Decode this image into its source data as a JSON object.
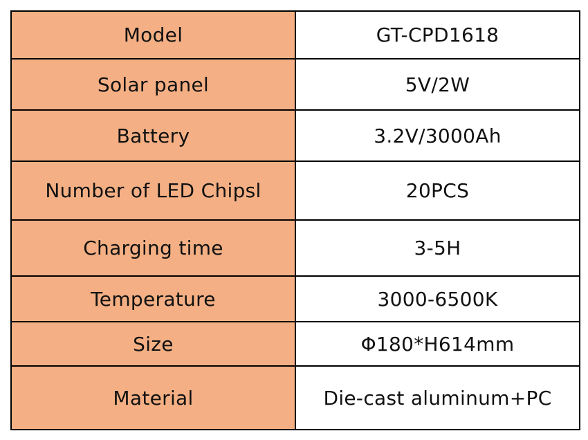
{
  "colors": {
    "label_cell_background": "#f4b084",
    "value_cell_background": "#ffffff",
    "border": "#000000"
  },
  "spec_table": {
    "rows": [
      {
        "label": "Model",
        "value": "GT-CPD1618"
      },
      {
        "label": "Solar panel",
        "value": "5V/2W"
      },
      {
        "label": "Battery",
        "value": "3.2V/3000Ah"
      },
      {
        "label": "Number of LED Chipsl",
        "value": "20PCS"
      },
      {
        "label": "Charging time",
        "value": "3-5H"
      },
      {
        "label": "Temperature",
        "value": "3000-6500K"
      },
      {
        "label": "Size",
        "value": "Φ180*H614mm"
      },
      {
        "label": "Material",
        "value": "Die-cast aluminum+PC"
      }
    ]
  }
}
